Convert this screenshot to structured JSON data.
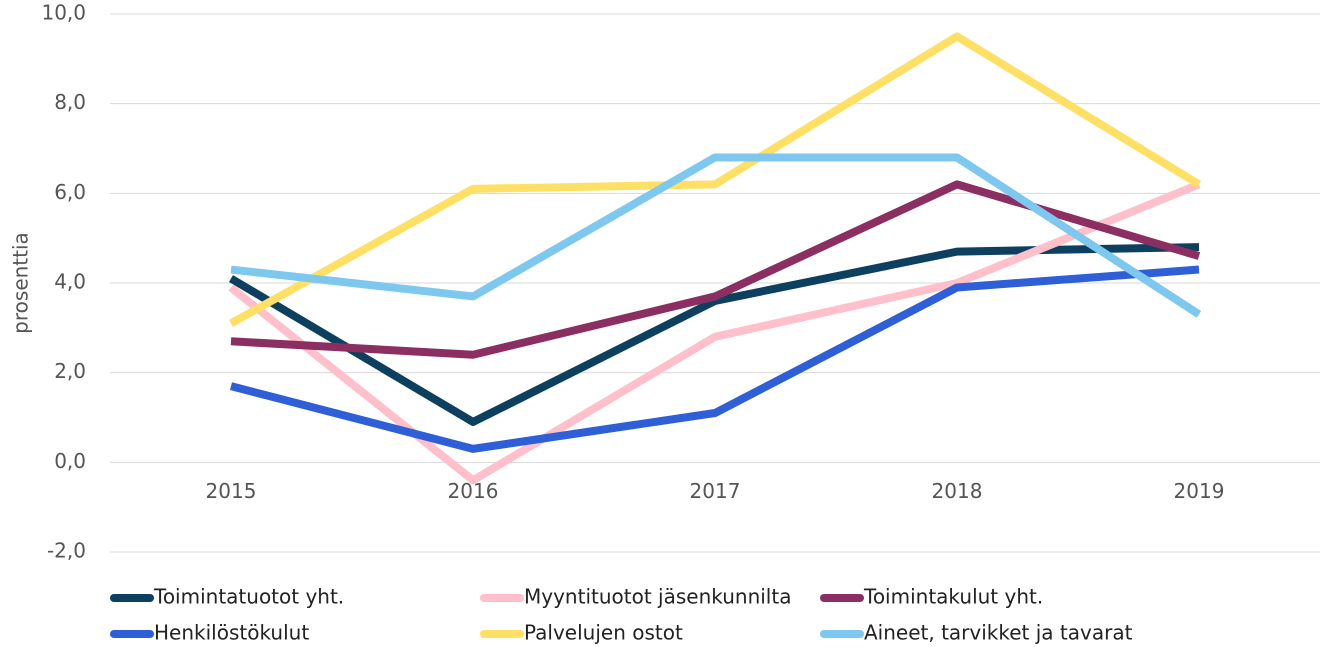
{
  "chart_data": {
    "type": "line",
    "y_label": "prosenttia",
    "categories": [
      "2015",
      "2016",
      "2017",
      "2018",
      "2019"
    ],
    "series": [
      {
        "name": "Toimintatuotot yht.",
        "color": "#0d3f5e",
        "values": [
          4.1,
          0.9,
          3.6,
          4.7,
          4.8
        ]
      },
      {
        "name": "Myyntituotot jäsenkunnilta",
        "color": "#ffc0cb",
        "values": [
          3.9,
          -0.4,
          2.8,
          4.0,
          6.2
        ]
      },
      {
        "name": "Toimintakulut yht.",
        "color": "#8b2e62",
        "values": [
          2.7,
          2.4,
          3.7,
          6.2,
          4.6
        ]
      },
      {
        "name": "Henkilöstökulut",
        "color": "#2e5fd6",
        "values": [
          1.7,
          0.3,
          1.1,
          3.9,
          4.3
        ]
      },
      {
        "name": "Palvelujen ostot",
        "color": "#ffe066",
        "values": [
          3.1,
          6.1,
          6.2,
          9.5,
          6.2
        ]
      },
      {
        "name": "Aineet, tarvikket ja tavarat",
        "color": "#7ec8f0",
        "values": [
          4.3,
          3.7,
          6.8,
          6.8,
          3.3
        ]
      }
    ],
    "ylim": [
      -2,
      10
    ],
    "yticks": [
      {
        "value": -2,
        "label": "-2,0"
      },
      {
        "value": 0,
        "label": "0,0"
      },
      {
        "value": 2,
        "label": "2,0"
      },
      {
        "value": 4,
        "label": "4,0"
      },
      {
        "value": 6,
        "label": "6,0"
      },
      {
        "value": 8,
        "label": "8,0"
      },
      {
        "value": 10,
        "label": "10,0"
      }
    ],
    "grid": true,
    "legend": "bottom"
  }
}
